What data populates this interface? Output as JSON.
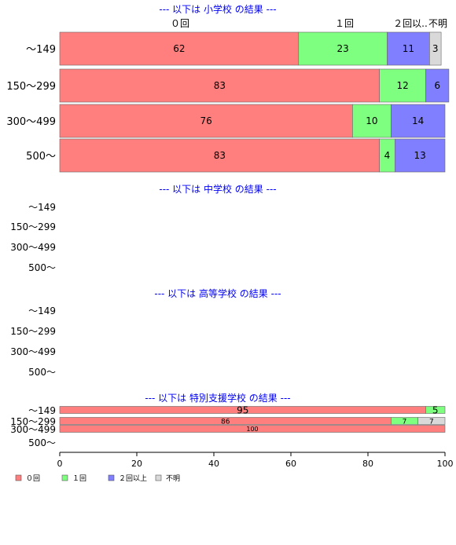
{
  "chart_data": {
    "type": "bar",
    "orientation": "horizontal",
    "stacked": true,
    "xlim": [
      0,
      100
    ],
    "x_ticks": [
      0,
      20,
      40,
      60,
      80,
      100
    ],
    "grid": false,
    "legend_position": "bottom-left",
    "top_labels": [
      "０回",
      "１回",
      "２回以..",
      "不明"
    ],
    "series": [
      {
        "name": "０回",
        "color": "#ff7f7f"
      },
      {
        "name": "１回",
        "color": "#7fff7f"
      },
      {
        "name": "２回以上",
        "color": "#7f7fff"
      },
      {
        "name": "不明",
        "color": "#d9d9d9"
      }
    ],
    "panels": [
      {
        "title": "--- 以下は 小学校 の結果 ---",
        "categories": [
          "～149",
          "150～299",
          "300～499",
          "500～"
        ],
        "rows": [
          {
            "values": [
              62,
              23,
              11,
              3
            ],
            "labels": [
              "62",
              "23",
              "11",
              "3"
            ]
          },
          {
            "values": [
              83,
              12,
              6,
              0
            ],
            "labels": [
              "83",
              "12",
              "6",
              ""
            ]
          },
          {
            "values": [
              76,
              10,
              14,
              0
            ],
            "labels": [
              "76",
              "10",
              "14",
              ""
            ]
          },
          {
            "values": [
              83,
              4,
              13,
              0
            ],
            "labels": [
              "83",
              "4",
              "13",
              ""
            ]
          }
        ]
      },
      {
        "title": "--- 以下は 中学校 の結果 ---",
        "categories": [
          "～149",
          "150～299",
          "300～499",
          "500～"
        ],
        "rows": [
          {
            "values": [
              0,
              0,
              0,
              0
            ],
            "labels": [
              "",
              "",
              "",
              ""
            ]
          },
          {
            "values": [
              0,
              0,
              0,
              0
            ],
            "labels": [
              "",
              "",
              "",
              ""
            ]
          },
          {
            "values": [
              0,
              0,
              0,
              0
            ],
            "labels": [
              "",
              "",
              "",
              ""
            ]
          },
          {
            "values": [
              0,
              0,
              0,
              0
            ],
            "labels": [
              "",
              "",
              "",
              ""
            ]
          }
        ]
      },
      {
        "title": "--- 以下は 高等学校 の結果 ---",
        "categories": [
          "～149",
          "150～299",
          "300～499",
          "500～"
        ],
        "rows": [
          {
            "values": [
              0,
              0,
              0,
              0
            ],
            "labels": [
              "",
              "",
              "",
              ""
            ]
          },
          {
            "values": [
              0,
              0,
              0,
              0
            ],
            "labels": [
              "",
              "",
              "",
              ""
            ]
          },
          {
            "values": [
              0,
              0,
              0,
              0
            ],
            "labels": [
              "",
              "",
              "",
              ""
            ]
          },
          {
            "values": [
              0,
              0,
              0,
              0
            ],
            "labels": [
              "",
              "",
              "",
              ""
            ]
          }
        ]
      },
      {
        "title": "--- 以下は 特別支援学校 の結果 ---",
        "categories": [
          "～149",
          "150～299",
          "300～499",
          "500～"
        ],
        "rows": [
          {
            "values": [
              95,
              5,
              0,
              0
            ],
            "labels": [
              "95",
              "5",
              "",
              ""
            ]
          },
          {
            "values": [
              86,
              7,
              0,
              7
            ],
            "labels": [
              "86",
              "7",
              "",
              "7"
            ]
          },
          {
            "values": [
              100,
              0,
              0,
              0
            ],
            "labels": [
              "100",
              "",
              "",
              ""
            ]
          },
          {
            "values": [
              0,
              0,
              0,
              0
            ],
            "labels": [
              "",
              "",
              "",
              ""
            ]
          }
        ]
      }
    ]
  }
}
